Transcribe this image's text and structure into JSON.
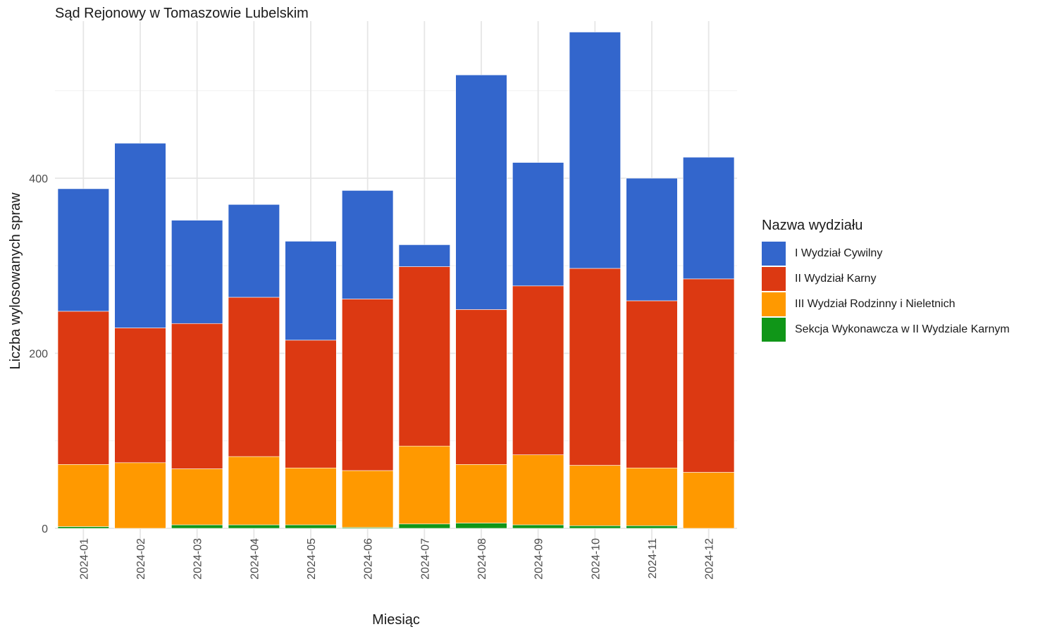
{
  "chart_data": {
    "type": "bar",
    "stacked": true,
    "title": "Sąd Rejonowy w Tomaszowie Lubelskim",
    "xlabel": "Miesiąc",
    "ylabel": "Liczba wylosowanych spraw",
    "ylim": [
      0,
      580
    ],
    "yticks": [
      0,
      200,
      400
    ],
    "grid": true,
    "legend_position": "right",
    "legend_title": "Nazwa wydziału",
    "categories": [
      "2024-01",
      "2024-02",
      "2024-03",
      "2024-04",
      "2024-05",
      "2024-06",
      "2024-07",
      "2024-08",
      "2024-09",
      "2024-10",
      "2024-11",
      "2024-12"
    ],
    "series": [
      {
        "name": "Sekcja Wykonawcza w II Wydziale Karnym",
        "color": "#109618",
        "values": [
          2,
          0,
          4,
          4,
          4,
          1,
          5,
          6,
          4,
          3,
          3,
          0
        ]
      },
      {
        "name": "III Wydział Rodzinny i Nieletnich",
        "color": "#ff9900",
        "values": [
          71,
          75,
          64,
          78,
          65,
          65,
          89,
          67,
          80,
          69,
          66,
          64
        ]
      },
      {
        "name": "II Wydział Karny",
        "color": "#dc3912",
        "values": [
          175,
          154,
          166,
          182,
          146,
          196,
          205,
          177,
          193,
          225,
          191,
          221
        ]
      },
      {
        "name": "I Wydział Cywilny",
        "color": "#3366cc",
        "values": [
          140,
          211,
          118,
          106,
          113,
          124,
          25,
          268,
          141,
          270,
          140,
          139
        ]
      }
    ],
    "legend_order": [
      "I Wydział Cywilny",
      "II Wydział Karny",
      "III Wydział Rodzinny i Nieletnich",
      "Sekcja Wykonawcza w II Wydziale Karnym"
    ]
  }
}
